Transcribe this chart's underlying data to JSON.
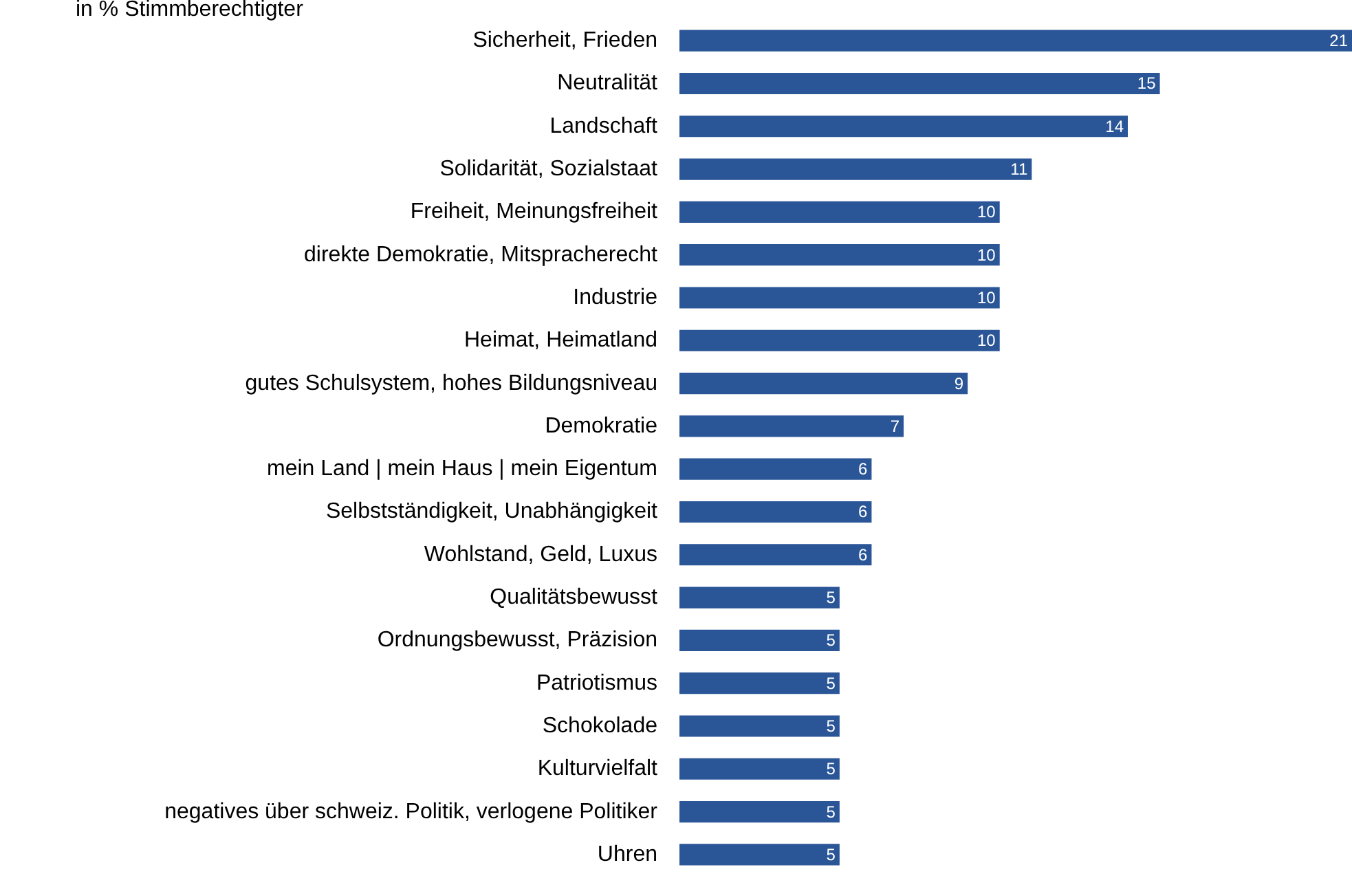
{
  "chart_data": {
    "type": "bar",
    "orientation": "horizontal",
    "subtitle": "in % Stimmberechtigter",
    "categories": [
      "Sicherheit, Frieden",
      "Neutralität",
      "Landschaft",
      "Solidarität, Sozialstaat",
      "Freiheit, Meinungsfreiheit",
      "direkte Demokratie, Mitspracherecht",
      "Industrie",
      "Heimat, Heimatland",
      "gutes Schulsystem, hohes Bildungsniveau",
      "Demokratie",
      "mein Land | mein Haus | mein Eigentum",
      "Selbstständigkeit, Unabhängigkeit",
      "Wohlstand, Geld, Luxus",
      "Qualitätsbewusst",
      "Ordnungsbewusst, Präzision",
      "Patriotismus",
      "Schokolade",
      "Kulturvielfalt",
      "negatives über schweiz. Politik, verlogene Politiker",
      "Uhren"
    ],
    "values": [
      21,
      15,
      14,
      11,
      10,
      10,
      10,
      10,
      9,
      7,
      6,
      6,
      6,
      5,
      5,
      5,
      5,
      5,
      5,
      5
    ],
    "color": "#2a5597",
    "data_labels": true,
    "tick_labels": "y"
  }
}
